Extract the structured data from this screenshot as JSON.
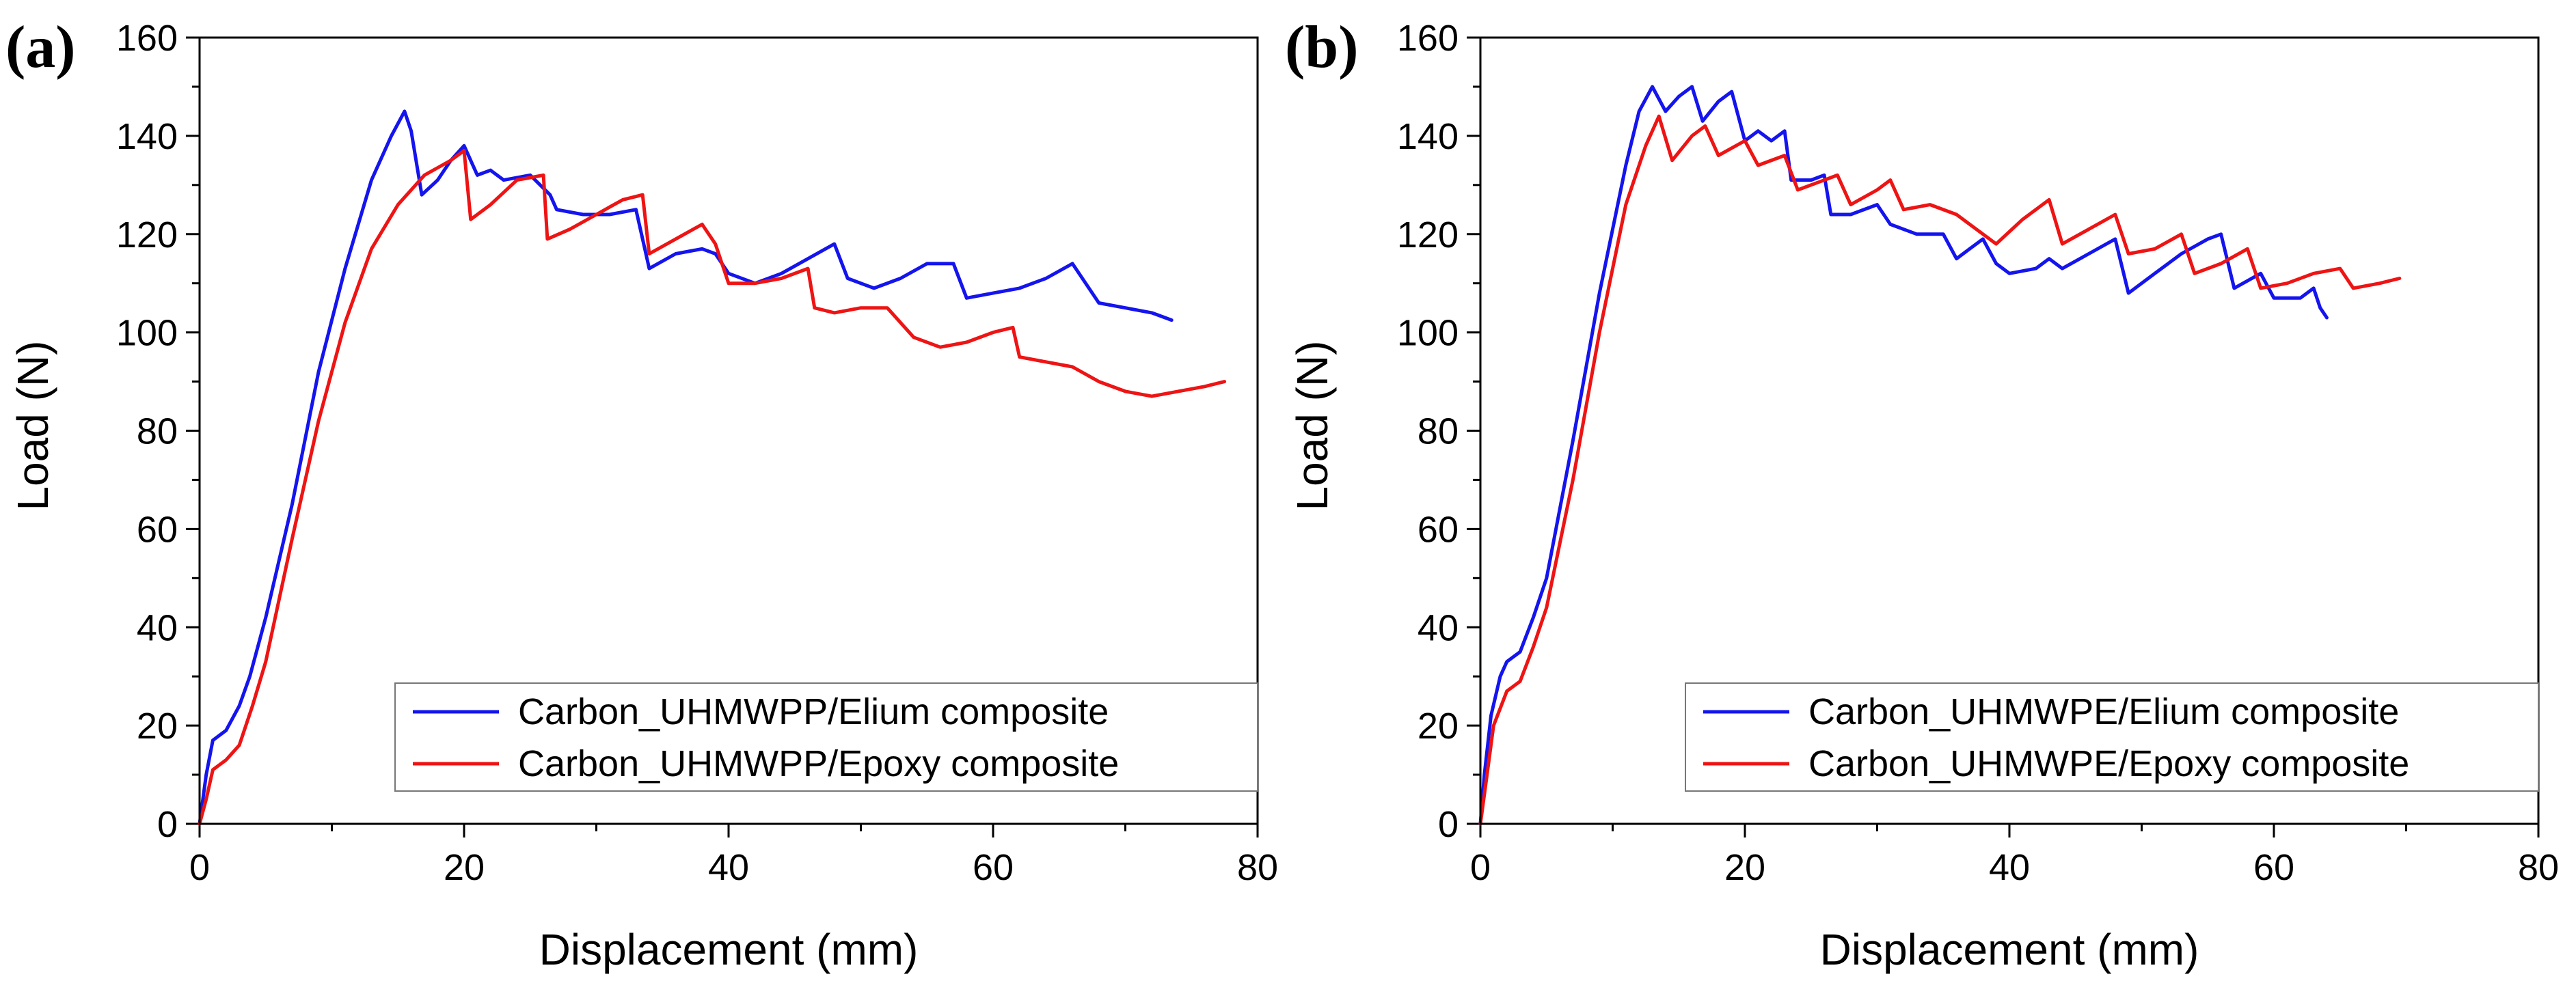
{
  "chart_data": [
    {
      "type": "line",
      "panel_label": "(a)",
      "xlabel": "Displacement (mm)",
      "ylabel": "Load (N)",
      "xlim": [
        0,
        80
      ],
      "ylim": [
        0,
        160
      ],
      "x_ticks": [
        "0",
        "20",
        "40",
        "60",
        "80"
      ],
      "y_ticks": [
        "0",
        "20",
        "40",
        "60",
        "80",
        "100",
        "120",
        "140",
        "160"
      ],
      "legend_position": "bottom-right",
      "series": [
        {
          "name": "Carbon_UHMWPP/Elium composite",
          "color": "#1414ee",
          "points": [
            [
              0,
              0
            ],
            [
              0.5,
              10
            ],
            [
              1,
              17
            ],
            [
              2,
              19
            ],
            [
              3,
              24
            ],
            [
              3.8,
              30
            ],
            [
              5,
              42
            ],
            [
              7,
              65
            ],
            [
              9,
              92
            ],
            [
              11,
              113
            ],
            [
              13,
              131
            ],
            [
              14.5,
              140
            ],
            [
              15.5,
              145
            ],
            [
              16,
              141
            ],
            [
              16.8,
              128
            ],
            [
              18,
              131
            ],
            [
              19,
              135
            ],
            [
              20,
              138
            ],
            [
              21,
              132
            ],
            [
              22,
              133
            ],
            [
              23,
              131
            ],
            [
              25,
              132
            ],
            [
              26.5,
              128
            ],
            [
              27,
              125
            ],
            [
              29,
              124
            ],
            [
              31,
              124
            ],
            [
              33,
              125
            ],
            [
              34,
              113
            ],
            [
              36,
              116
            ],
            [
              38,
              117
            ],
            [
              39,
              116
            ],
            [
              40,
              112
            ],
            [
              42,
              110
            ],
            [
              44,
              112
            ],
            [
              46,
              115
            ],
            [
              48,
              118
            ],
            [
              49,
              111
            ],
            [
              51,
              109
            ],
            [
              53,
              111
            ],
            [
              55,
              114
            ],
            [
              57,
              114
            ],
            [
              58,
              107
            ],
            [
              60,
              108
            ],
            [
              62,
              109
            ],
            [
              64,
              111
            ],
            [
              66,
              114
            ],
            [
              68,
              106
            ],
            [
              70,
              105
            ],
            [
              72,
              104
            ],
            [
              73,
              103
            ],
            [
              73.5,
              102.5
            ]
          ]
        },
        {
          "name": "Carbon_UHMWPP/Epoxy composite",
          "color": "#ee1414",
          "points": [
            [
              0,
              0
            ],
            [
              0.5,
              5
            ],
            [
              1,
              11
            ],
            [
              2,
              13
            ],
            [
              3,
              16
            ],
            [
              4,
              24
            ],
            [
              5,
              33
            ],
            [
              7,
              58
            ],
            [
              9,
              82
            ],
            [
              11,
              102
            ],
            [
              13,
              117
            ],
            [
              15,
              126
            ],
            [
              17,
              132
            ],
            [
              19,
              135
            ],
            [
              20,
              137
            ],
            [
              20.5,
              123
            ],
            [
              22,
              126
            ],
            [
              24,
              131
            ],
            [
              26,
              132
            ],
            [
              26.3,
              119
            ],
            [
              28,
              121
            ],
            [
              30,
              124
            ],
            [
              32,
              127
            ],
            [
              33.5,
              128
            ],
            [
              34,
              116
            ],
            [
              36,
              119
            ],
            [
              38,
              122
            ],
            [
              39,
              118
            ],
            [
              40,
              110
            ],
            [
              42,
              110
            ],
            [
              44,
              111
            ],
            [
              46,
              113
            ],
            [
              46.5,
              105
            ],
            [
              48,
              104
            ],
            [
              50,
              105
            ],
            [
              52,
              105
            ],
            [
              54,
              99
            ],
            [
              56,
              97
            ],
            [
              58,
              98
            ],
            [
              60,
              100
            ],
            [
              61.5,
              101
            ],
            [
              62,
              95
            ],
            [
              64,
              94
            ],
            [
              66,
              93
            ],
            [
              68,
              90
            ],
            [
              70,
              88
            ],
            [
              72,
              87
            ],
            [
              74,
              88
            ],
            [
              76,
              89
            ],
            [
              77.5,
              90
            ]
          ]
        }
      ]
    },
    {
      "type": "line",
      "panel_label": "(b)",
      "xlabel": "Displacement (mm)",
      "ylabel": "Load (N)",
      "xlim": [
        0,
        80
      ],
      "ylim": [
        0,
        160
      ],
      "x_ticks": [
        "0",
        "20",
        "40",
        "60",
        "80"
      ],
      "y_ticks": [
        "0",
        "20",
        "40",
        "60",
        "80",
        "100",
        "120",
        "140",
        "160"
      ],
      "legend_position": "bottom-right",
      "series": [
        {
          "name": "Carbon_UHMWPE/Elium composite",
          "color": "#1414ee",
          "points": [
            [
              0,
              0
            ],
            [
              0.3,
              10
            ],
            [
              0.8,
              22
            ],
            [
              1.5,
              30
            ],
            [
              2,
              33
            ],
            [
              3,
              35
            ],
            [
              4,
              42
            ],
            [
              5,
              50
            ],
            [
              7,
              78
            ],
            [
              9,
              108
            ],
            [
              11,
              134
            ],
            [
              12,
              145
            ],
            [
              13,
              150
            ],
            [
              14,
              145
            ],
            [
              15,
              148
            ],
            [
              16,
              150
            ],
            [
              16.8,
              143
            ],
            [
              18,
              147
            ],
            [
              19,
              149
            ],
            [
              20,
              139
            ],
            [
              21,
              141
            ],
            [
              22,
              139
            ],
            [
              23,
              141
            ],
            [
              23.5,
              131
            ],
            [
              25,
              131
            ],
            [
              26,
              132
            ],
            [
              26.5,
              124
            ],
            [
              28,
              124
            ],
            [
              30,
              126
            ],
            [
              31,
              122
            ],
            [
              33,
              120
            ],
            [
              35,
              120
            ],
            [
              36,
              115
            ],
            [
              37,
              117
            ],
            [
              38,
              119
            ],
            [
              39,
              114
            ],
            [
              40,
              112
            ],
            [
              42,
              113
            ],
            [
              43,
              115
            ],
            [
              44,
              113
            ],
            [
              46,
              116
            ],
            [
              48,
              119
            ],
            [
              49,
              108
            ],
            [
              51,
              112
            ],
            [
              53,
              116
            ],
            [
              55,
              119
            ],
            [
              56,
              120
            ],
            [
              57,
              109
            ],
            [
              59,
              112
            ],
            [
              60,
              107
            ],
            [
              62,
              107
            ],
            [
              63,
              109
            ],
            [
              63.5,
              105
            ],
            [
              64,
              103
            ]
          ]
        },
        {
          "name": "Carbon_UHMWPE/Epoxy composite",
          "color": "#ee1414",
          "points": [
            [
              0,
              0
            ],
            [
              0.5,
              10
            ],
            [
              1,
              20
            ],
            [
              2,
              27
            ],
            [
              3,
              29
            ],
            [
              4,
              36
            ],
            [
              5,
              44
            ],
            [
              7,
              70
            ],
            [
              9,
              100
            ],
            [
              11,
              126
            ],
            [
              12.5,
              138
            ],
            [
              13.5,
              144
            ],
            [
              14.5,
              135
            ],
            [
              16,
              140
            ],
            [
              17,
              142
            ],
            [
              18,
              136
            ],
            [
              20,
              139
            ],
            [
              21,
              134
            ],
            [
              23,
              136
            ],
            [
              24,
              129
            ],
            [
              26,
              131
            ],
            [
              27,
              132
            ],
            [
              28,
              126
            ],
            [
              30,
              129
            ],
            [
              31,
              131
            ],
            [
              32,
              125
            ],
            [
              34,
              126
            ],
            [
              36,
              124
            ],
            [
              37,
              122
            ],
            [
              39,
              118
            ],
            [
              41,
              123
            ],
            [
              43,
              127
            ],
            [
              44,
              118
            ],
            [
              46,
              121
            ],
            [
              48,
              124
            ],
            [
              49,
              116
            ],
            [
              51,
              117
            ],
            [
              53,
              120
            ],
            [
              54,
              112
            ],
            [
              56,
              114
            ],
            [
              58,
              117
            ],
            [
              59,
              109
            ],
            [
              61,
              110
            ],
            [
              63,
              112
            ],
            [
              65,
              113
            ],
            [
              66,
              109
            ],
            [
              68,
              110
            ],
            [
              69.5,
              111
            ]
          ]
        }
      ]
    }
  ]
}
